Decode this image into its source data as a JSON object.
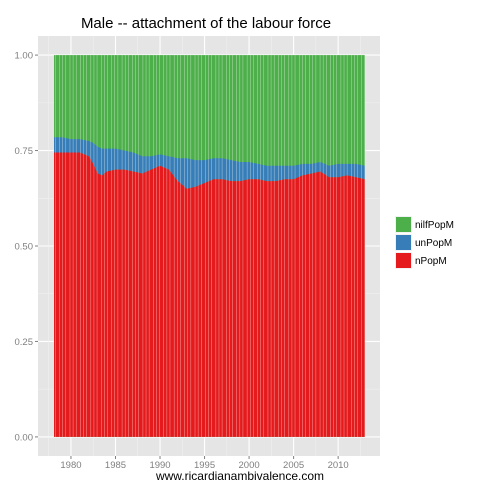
{
  "chart_data": {
    "type": "area",
    "stacked": true,
    "title": "Male -- attachment of the labour force",
    "xlabel": "www.ricardianambivalence.com",
    "ylabel": "",
    "xlim": [
      1976.3,
      2014.7
    ],
    "ylim": [
      -0.05,
      1.05
    ],
    "x_ticks": [
      1980,
      1985,
      1990,
      1995,
      2000,
      2005,
      2010
    ],
    "x_tick_labels": [
      "1980",
      "1985",
      "1990",
      "1995",
      "2000",
      "2005",
      "2010"
    ],
    "y_ticks": [
      0,
      0.25,
      0.5,
      0.75,
      1
    ],
    "y_tick_labels": [
      "0.00",
      "0.25",
      "0.50",
      "0.75",
      "1.00"
    ],
    "grid": true,
    "legend_position": "right",
    "x": [
      1978.1,
      1979,
      1980,
      1981,
      1982,
      1982.5,
      1983,
      1983.5,
      1984,
      1985,
      1986,
      1987,
      1988,
      1989,
      1990,
      1991,
      1992,
      1992.5,
      1993,
      1994,
      1995,
      1996,
      1997,
      1998,
      1999,
      2000,
      2001,
      2002,
      2003,
      2004,
      2005,
      2006,
      2007,
      2008,
      2009,
      2010,
      2011,
      2012,
      2013
    ],
    "series": [
      {
        "name": "nPopM",
        "color": "#E41A1C",
        "values": [
          0.745,
          0.745,
          0.745,
          0.745,
          0.735,
          0.715,
          0.69,
          0.685,
          0.695,
          0.7,
          0.7,
          0.695,
          0.69,
          0.7,
          0.71,
          0.7,
          0.67,
          0.66,
          0.65,
          0.655,
          0.665,
          0.675,
          0.675,
          0.67,
          0.67,
          0.675,
          0.675,
          0.67,
          0.67,
          0.675,
          0.675,
          0.685,
          0.69,
          0.695,
          0.68,
          0.68,
          0.685,
          0.68,
          0.675
        ]
      },
      {
        "name": "unPopM",
        "color": "#377EB8",
        "values": [
          0.04,
          0.04,
          0.035,
          0.035,
          0.04,
          0.055,
          0.07,
          0.07,
          0.06,
          0.055,
          0.05,
          0.05,
          0.045,
          0.035,
          0.03,
          0.035,
          0.06,
          0.07,
          0.08,
          0.07,
          0.06,
          0.055,
          0.055,
          0.055,
          0.05,
          0.045,
          0.04,
          0.04,
          0.04,
          0.035,
          0.035,
          0.03,
          0.025,
          0.025,
          0.03,
          0.035,
          0.03,
          0.035,
          0.035
        ]
      },
      {
        "name": "nilfPopM",
        "color": "#4DAF4A",
        "values": "remainder to 1.00"
      }
    ]
  },
  "legend": {
    "items": [
      {
        "label": "nilfPopM",
        "color": "#4DAF4A"
      },
      {
        "label": "unPopM",
        "color": "#377EB8"
      },
      {
        "label": "nPopM",
        "color": "#E41A1C"
      }
    ]
  },
  "colors": {
    "panel_bg": "#E5E5E5",
    "grid": "#FFFFFF",
    "tick_text": "#7F7F7F"
  }
}
